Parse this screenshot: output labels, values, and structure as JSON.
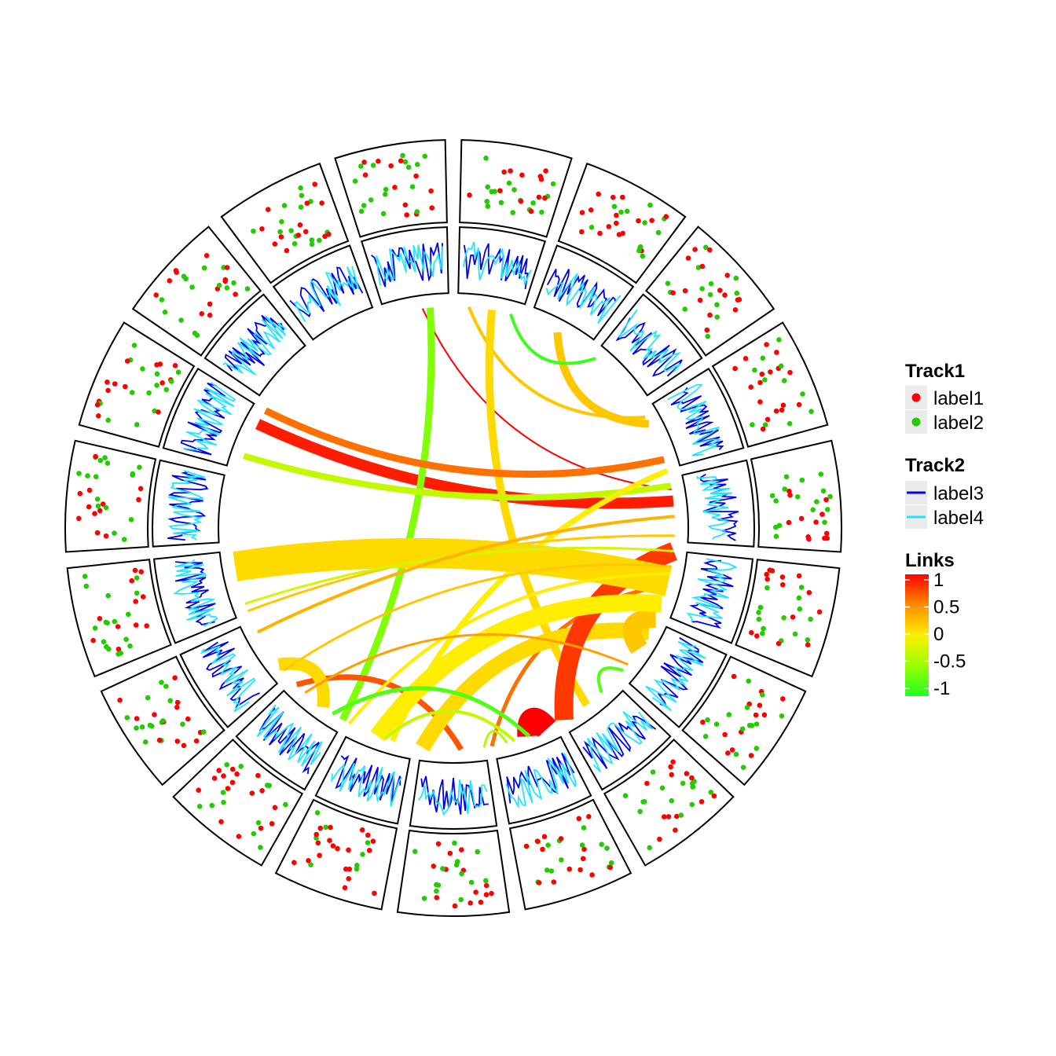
{
  "chart_data": {
    "type": "circos",
    "sector_count": 19,
    "tracks": [
      {
        "title": "Track1",
        "kind": "points",
        "series": [
          {
            "name": "label1",
            "color": "#ff0000"
          },
          {
            "name": "label2",
            "color": "#22cc00"
          }
        ]
      },
      {
        "title": "Track2",
        "kind": "lines",
        "series": [
          {
            "name": "label3",
            "color": "#0000ee"
          },
          {
            "name": "label4",
            "color": "#22e6ff"
          }
        ]
      }
    ],
    "links": {
      "title": "Links",
      "color_scale": {
        "domain": [
          -1,
          1
        ],
        "stops": [
          {
            "value": -1,
            "color": "#22ff22"
          },
          {
            "value": -0.5,
            "color": "#99ff00"
          },
          {
            "value": 0,
            "color": "#ffee00"
          },
          {
            "value": 0.5,
            "color": "#ff8c00"
          },
          {
            "value": 1,
            "color": "#ff0000"
          }
        ],
        "ticks": [
          "1",
          "0.5",
          "0",
          "-0.5",
          "-1"
        ],
        "tick_values": [
          1,
          0.5,
          0,
          -0.5,
          -1
        ]
      },
      "items": [
        {
          "from": 352,
          "to": 80,
          "value": 1.0,
          "width": 2
        },
        {
          "from": 298,
          "to": 83,
          "value": 0.9,
          "width": 14
        },
        {
          "from": 4,
          "to": 60,
          "value": 0.2,
          "width": 4
        },
        {
          "from": 10,
          "to": 143,
          "value": 0.1,
          "width": 10
        },
        {
          "from": 28,
          "to": 62,
          "value": 0.2,
          "width": 10
        },
        {
          "from": 354,
          "to": 210,
          "value": -0.6,
          "width": 9
        },
        {
          "from": 302,
          "to": 72,
          "value": 0.6,
          "width": 9
        },
        {
          "from": 289,
          "to": 79,
          "value": -0.3,
          "width": 8
        },
        {
          "from": 15,
          "to": 40,
          "value": -0.9,
          "width": 4
        },
        {
          "from": 170,
          "to": 105,
          "value": 0.6,
          "width": 5
        },
        {
          "from": 178,
          "to": 225,
          "value": 0.7,
          "width": 7
        },
        {
          "from": 196,
          "to": 75,
          "value": 0.0,
          "width": 7
        },
        {
          "from": 188,
          "to": 118,
          "value": 0.1,
          "width": 20
        },
        {
          "from": 155,
          "to": 160,
          "value": 1.0,
          "width": 30
        },
        {
          "from": 150,
          "to": 96,
          "value": 0.8,
          "width": 24
        },
        {
          "from": 248,
          "to": 92,
          "value": 0.2,
          "width": 3
        },
        {
          "from": 114,
          "to": 123,
          "value": 0.2,
          "width": 24
        },
        {
          "from": 200,
          "to": 110,
          "value": 0.0,
          "width": 22
        },
        {
          "from": 260,
          "to": 104,
          "value": 0.1,
          "width": 38
        },
        {
          "from": 208,
          "to": 102,
          "value": 0.0,
          "width": 4
        },
        {
          "from": 160,
          "to": 213,
          "value": -0.8,
          "width": 5
        },
        {
          "from": 164,
          "to": 198,
          "value": -0.3,
          "width": 4
        },
        {
          "from": 216,
          "to": 232,
          "value": 0.1,
          "width": 16
        },
        {
          "from": 222,
          "to": 128,
          "value": 0.4,
          "width": 3
        },
        {
          "from": 230,
          "to": 100,
          "value": 0.2,
          "width": 3
        },
        {
          "from": 130,
          "to": 138,
          "value": -0.8,
          "width": 4
        },
        {
          "from": 166,
          "to": 172,
          "value": -0.4,
          "width": 3
        },
        {
          "from": 250,
          "to": 96,
          "value": -0.2,
          "width": 3
        },
        {
          "from": 242,
          "to": 87,
          "value": 0.3,
          "width": 4
        }
      ]
    },
    "legend_position": "right"
  }
}
